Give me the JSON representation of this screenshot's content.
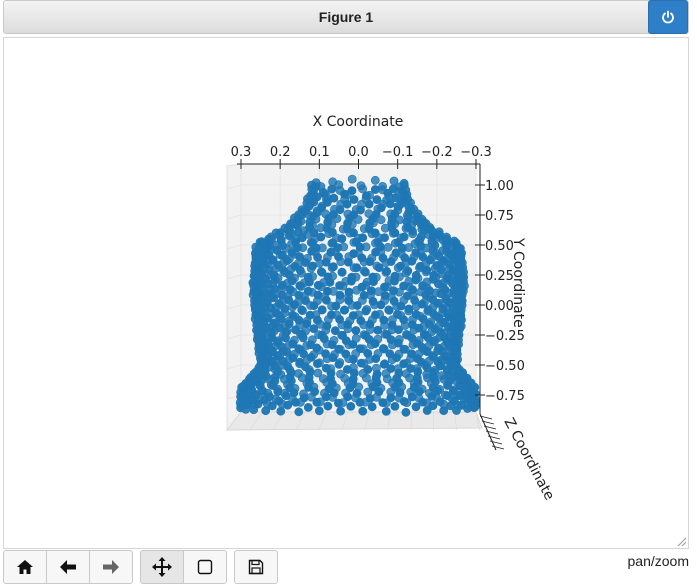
{
  "window": {
    "title": "Figure 1"
  },
  "toolbar": {
    "buttons": [
      {
        "name": "home",
        "icon": "home-icon"
      },
      {
        "name": "back",
        "icon": "arrow-left-icon"
      },
      {
        "name": "forward",
        "icon": "arrow-right-icon"
      },
      {
        "name": "pan",
        "icon": "move-icon",
        "active": true
      },
      {
        "name": "zoom",
        "icon": "zoom-rect-icon"
      },
      {
        "name": "save",
        "icon": "save-icon"
      }
    ],
    "status": "pan/zoom"
  },
  "colors": {
    "points": "#1f77b4",
    "titlebar": "#e0e0e0",
    "power_button": "#2f7fc8"
  },
  "chart_data": {
    "type": "scatter",
    "projection": "3d",
    "xlabel": "X Coordinate",
    "ylabel": "Y Coordinate",
    "zlabel": "Z Coordinate",
    "x_ticks": [
      "0.3",
      "0.2",
      "0.1",
      "0.0",
      "−0.1",
      "−0.2",
      "−0.3"
    ],
    "y_ticks": [
      "1.00",
      "0.75",
      "0.50",
      "0.25",
      "0.00",
      "−0.25",
      "−0.50",
      "−0.75"
    ],
    "xlim": [
      0.3,
      -0.3
    ],
    "ylim": [
      -0.85,
      1.05
    ],
    "grid": true,
    "color": "#1f77b4",
    "profile": [
      {
        "y": 1.0,
        "half_width": 0.12
      },
      {
        "y": 0.85,
        "half_width": 0.13
      },
      {
        "y": 0.65,
        "half_width": 0.18
      },
      {
        "y": 0.5,
        "half_width": 0.26
      },
      {
        "y": 0.2,
        "half_width": 0.27
      },
      {
        "y": -0.2,
        "half_width": 0.26
      },
      {
        "y": -0.5,
        "half_width": 0.25
      },
      {
        "y": -0.7,
        "half_width": 0.3
      },
      {
        "y": -0.85,
        "half_width": 0.3
      }
    ]
  }
}
